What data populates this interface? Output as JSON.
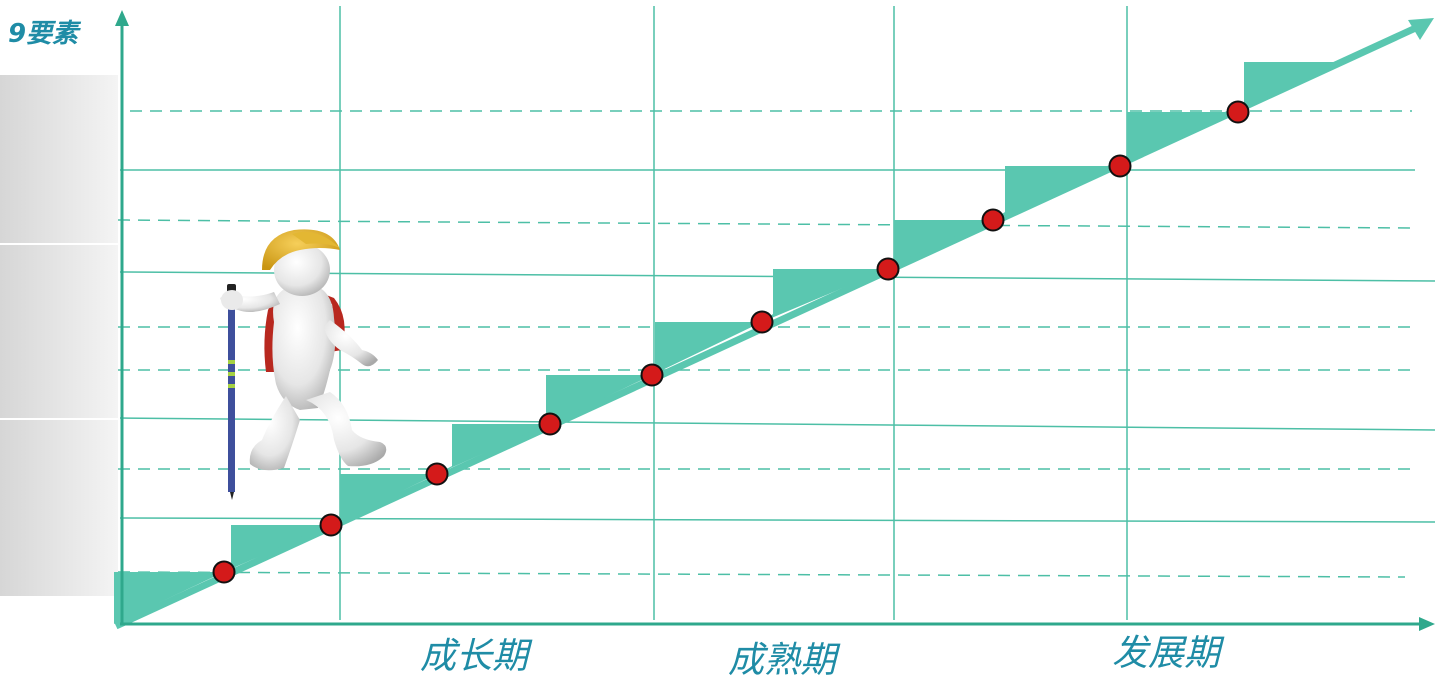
{
  "y_axis_label": "9要素",
  "phases": [
    {
      "label": "成长期"
    },
    {
      "label": "成熟期"
    },
    {
      "label": "发展期"
    }
  ],
  "colors": {
    "line": "#4dbfa6",
    "step_fill": "#5ac7b0",
    "axis": "#2fa88c",
    "node_fill": "#d41a1a",
    "node_stroke": "#111111",
    "label": "#1f8ca6",
    "side_panel": "#e4e4e4"
  },
  "steps_count": 11,
  "illustration": "hiker-figure-with-trekking-pole"
}
